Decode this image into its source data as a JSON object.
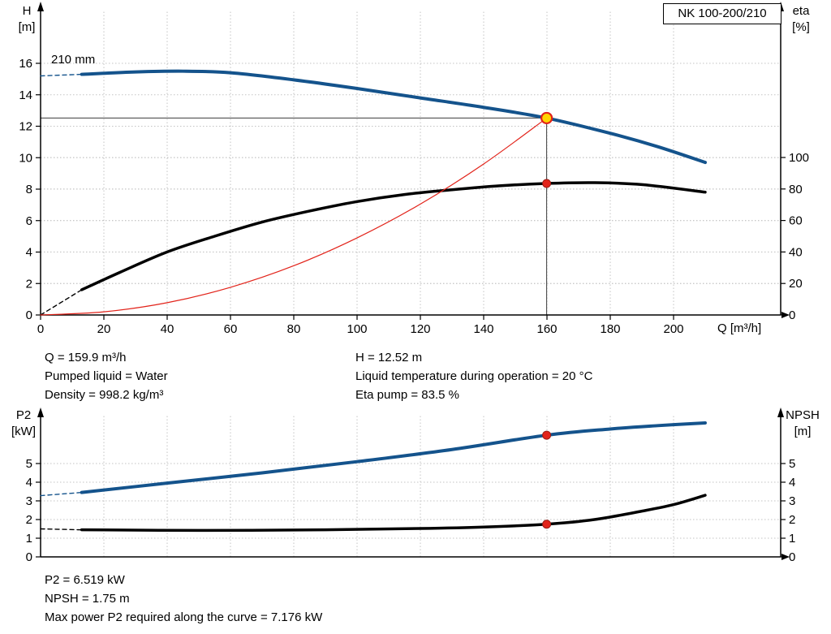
{
  "window": {
    "bg": "#ffffff"
  },
  "title_box": {
    "label": "NK 100-200/210"
  },
  "colors": {
    "blue": "#14538c",
    "black": "#000000",
    "red": "#e2231a",
    "grid": "#c3c3c3",
    "axis": "#000000",
    "marker_fill_yellow": "#ffd500",
    "ref_line": "#3c3c3c"
  },
  "info_top": {
    "left": [
      "Q = 159.9 m³/h",
      "Pumped liquid = Water",
      "Density = 998.2 kg/m³"
    ],
    "right": [
      "H = 12.52 m",
      "Liquid temperature during operation = 20 °C",
      "Eta pump = 83.5 %"
    ]
  },
  "info_bottom": {
    "lines": [
      "P2 = 6.519 kW",
      "NPSH = 1.75 m",
      "Max power P2 required along the curve = 7.176 kW"
    ]
  },
  "chart_data": [
    {
      "type": "line",
      "name": "hq-eta-chart",
      "title": "NK 100-200/210",
      "x_axis": {
        "label": "Q [m³/h]",
        "min": 0,
        "max": 234,
        "ticks": [
          0,
          20,
          40,
          60,
          80,
          100,
          120,
          140,
          160,
          180,
          200
        ]
      },
      "left_axis": {
        "label": "H",
        "unit": "[m]",
        "min": 0,
        "max": 19.6,
        "ticks": [
          0,
          2,
          4,
          6,
          8,
          10,
          12,
          14,
          16
        ]
      },
      "right_axis": {
        "label": "eta",
        "unit": "[%]",
        "min": 0,
        "max": 196,
        "ticks": [
          0,
          20,
          40,
          60,
          80,
          100
        ]
      },
      "grid": true,
      "series": [
        {
          "name": "head-curve",
          "label": "210 mm",
          "axis": "left",
          "color": "blue",
          "width": 4,
          "dashed_lead": [
            [
              0,
              15.2
            ],
            [
              13,
              15.3
            ]
          ],
          "points": [
            [
              13,
              15.3
            ],
            [
              30,
              15.45
            ],
            [
              45,
              15.5
            ],
            [
              60,
              15.4
            ],
            [
              80,
              14.95
            ],
            [
              100,
              14.4
            ],
            [
              120,
              13.8
            ],
            [
              140,
              13.2
            ],
            [
              159.9,
              12.52
            ],
            [
              180,
              11.55
            ],
            [
              195,
              10.7
            ],
            [
              210,
              9.7
            ]
          ]
        },
        {
          "name": "efficiency-curve",
          "label": "eta pump",
          "axis": "right",
          "color": "black",
          "width": 3.5,
          "dashed_lead": [
            [
              0,
              0
            ],
            [
              13,
              16
            ]
          ],
          "points": [
            [
              13,
              16
            ],
            [
              25,
              27
            ],
            [
              40,
              40
            ],
            [
              55,
              50
            ],
            [
              70,
              59
            ],
            [
              85,
              66
            ],
            [
              100,
              72
            ],
            [
              115,
              76.5
            ],
            [
              130,
              79.5
            ],
            [
              145,
              82
            ],
            [
              159.9,
              83.5
            ],
            [
              175,
              84
            ],
            [
              190,
              82.8
            ],
            [
              210,
              78
            ]
          ]
        },
        {
          "name": "system-curve",
          "label": "system curve",
          "axis": "left",
          "color": "red",
          "width": 1.2,
          "points": [
            [
              0,
              0
            ],
            [
              20,
              0.2
            ],
            [
              40,
              0.78
            ],
            [
              60,
              1.76
            ],
            [
              80,
              3.13
            ],
            [
              100,
              4.9
            ],
            [
              120,
              7.05
            ],
            [
              140,
              9.6
            ],
            [
              159.9,
              12.52
            ]
          ]
        }
      ],
      "ref_lines": [
        {
          "type": "h",
          "value": 12.52,
          "to_x": 159.9
        },
        {
          "type": "v",
          "at": 159.9,
          "to_y": 12.52
        }
      ],
      "markers": [
        {
          "name": "duty-point",
          "axis": "left",
          "x": 159.9,
          "y": 12.52,
          "style": "duty"
        },
        {
          "name": "eta-point",
          "axis": "right",
          "x": 159.9,
          "y": 83.5,
          "style": "dot"
        }
      ]
    },
    {
      "type": "line",
      "name": "p2-npsh-chart",
      "x_axis": {
        "label": "",
        "min": 0,
        "max": 234,
        "ticks": [
          0,
          20,
          40,
          60,
          80,
          100,
          120,
          140,
          160,
          180,
          200
        ]
      },
      "left_axis": {
        "label": "P2",
        "unit": "[kW]",
        "min": 0,
        "max": 7.74,
        "ticks": [
          0,
          1,
          2,
          3,
          4,
          5
        ]
      },
      "right_axis": {
        "label": "NPSH",
        "unit": "[m]",
        "min": 0,
        "max": 7.74,
        "ticks": [
          0,
          1,
          2,
          3,
          4,
          5
        ]
      },
      "grid": true,
      "series": [
        {
          "name": "p2-curve",
          "label": "P2",
          "axis": "left",
          "color": "blue",
          "width": 4,
          "dashed_lead": [
            [
              0,
              3.28
            ],
            [
              13,
              3.45
            ]
          ],
          "points": [
            [
              13,
              3.45
            ],
            [
              40,
              3.95
            ],
            [
              70,
              4.5
            ],
            [
              100,
              5.1
            ],
            [
              130,
              5.75
            ],
            [
              159.9,
              6.519
            ],
            [
              180,
              6.85
            ],
            [
              195,
              7.03
            ],
            [
              210,
              7.176
            ]
          ]
        },
        {
          "name": "npsh-curve",
          "label": "NPSH",
          "axis": "right",
          "color": "black",
          "width": 3.5,
          "dashed_lead": [
            [
              0,
              1.5
            ],
            [
              13,
              1.45
            ]
          ],
          "points": [
            [
              13,
              1.45
            ],
            [
              50,
              1.42
            ],
            [
              90,
              1.45
            ],
            [
              120,
              1.52
            ],
            [
              140,
              1.6
            ],
            [
              159.9,
              1.75
            ],
            [
              175,
              2.0
            ],
            [
              190,
              2.45
            ],
            [
              200,
              2.8
            ],
            [
              210,
              3.3
            ]
          ]
        }
      ],
      "ref_lines": [],
      "markers": [
        {
          "name": "p2-point",
          "axis": "left",
          "x": 159.9,
          "y": 6.519,
          "style": "dot"
        },
        {
          "name": "npsh-point",
          "axis": "right",
          "x": 159.9,
          "y": 1.75,
          "style": "dot"
        }
      ]
    }
  ]
}
